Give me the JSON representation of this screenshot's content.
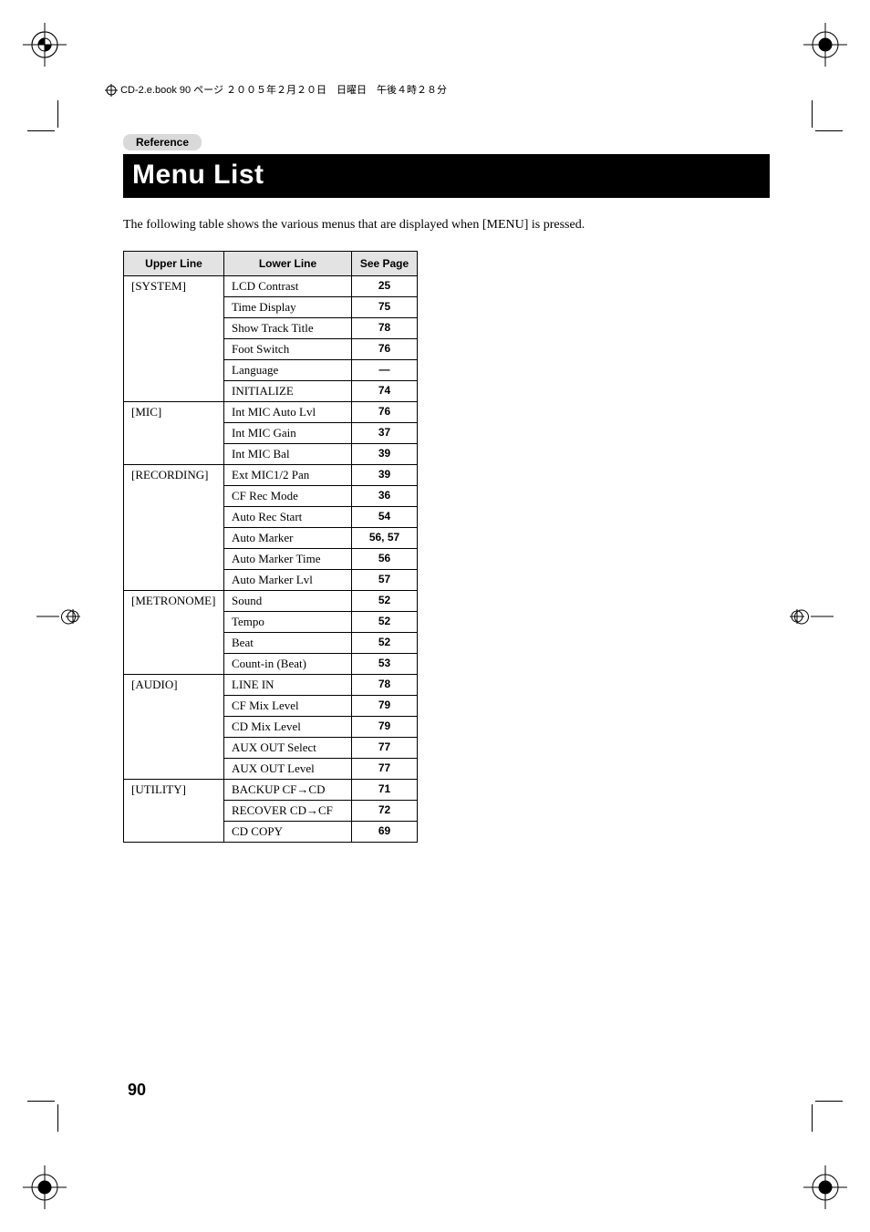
{
  "header_line": "CD-2.e.book  90 ページ  ２００５年２月２０日　日曜日　午後４時２８分",
  "reference_label": "Reference",
  "title": "Menu List",
  "intro_text": "The following table shows the various menus that are displayed when [MENU] is pressed.",
  "table": {
    "headers": {
      "upper": "Upper Line",
      "lower": "Lower Line",
      "page": "See Page"
    },
    "groups": [
      {
        "upper": "[SYSTEM]",
        "rows": [
          {
            "lower": "LCD Contrast",
            "page": "25"
          },
          {
            "lower": "Time Display",
            "page": "75"
          },
          {
            "lower": "Show Track Title",
            "page": "78"
          },
          {
            "lower": "Foot Switch",
            "page": "76"
          },
          {
            "lower": "Language",
            "page": "—"
          },
          {
            "lower": "INITIALIZE",
            "page": "74"
          }
        ]
      },
      {
        "upper": "[MIC]",
        "rows": [
          {
            "lower": "Int MIC Auto Lvl",
            "page": "76"
          },
          {
            "lower": "Int MIC Gain",
            "page": "37"
          },
          {
            "lower": "Int MIC Bal",
            "page": "39"
          }
        ]
      },
      {
        "upper": "[RECORDING]",
        "rows": [
          {
            "lower": "Ext MIC1/2 Pan",
            "page": "39"
          },
          {
            "lower": "CF Rec Mode",
            "page": "36"
          },
          {
            "lower": "Auto Rec Start",
            "page": "54"
          },
          {
            "lower": "Auto Marker",
            "page": "56, 57"
          },
          {
            "lower": "Auto Marker Time",
            "page": "56"
          },
          {
            "lower": "Auto Marker Lvl",
            "page": "57"
          }
        ]
      },
      {
        "upper": "[METRONOME]",
        "rows": [
          {
            "lower": "Sound",
            "page": "52"
          },
          {
            "lower": "Tempo",
            "page": "52"
          },
          {
            "lower": "Beat",
            "page": "52"
          },
          {
            "lower": "Count-in (Beat)",
            "page": "53"
          }
        ]
      },
      {
        "upper": "[AUDIO]",
        "rows": [
          {
            "lower": "LINE IN",
            "page": "78"
          },
          {
            "lower": "CF Mix Level",
            "page": "79"
          },
          {
            "lower": "CD Mix Level",
            "page": "79"
          },
          {
            "lower": "AUX OUT Select",
            "page": "77"
          },
          {
            "lower": "AUX OUT Level",
            "page": "77"
          }
        ]
      },
      {
        "upper": "[UTILITY]",
        "rows": [
          {
            "lower": "BACKUP CF→CD",
            "page": "71"
          },
          {
            "lower": "RECOVER CD→CF",
            "page": "72"
          },
          {
            "lower": "CD COPY",
            "page": "69"
          }
        ]
      }
    ]
  },
  "page_number": "90"
}
